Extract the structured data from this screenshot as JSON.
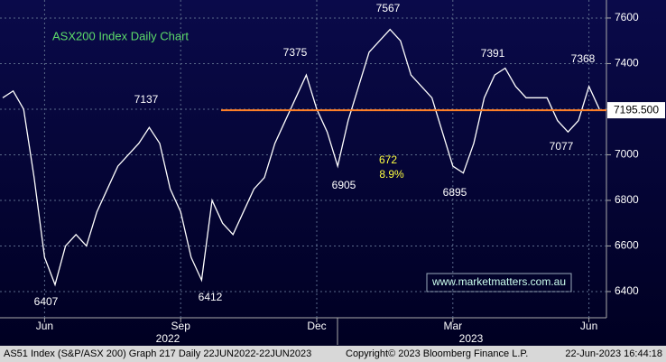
{
  "chart_data": {
    "type": "line",
    "title": "ASX200 Index Daily Chart",
    "categories": [
      null,
      null,
      null,
      null,
      "Jun",
      null,
      null,
      null,
      null,
      null,
      null,
      null,
      null,
      null,
      null,
      null,
      null,
      "Sep",
      null,
      null,
      null,
      null,
      null,
      null,
      null,
      null,
      null,
      null,
      null,
      null,
      "Dec",
      null,
      null,
      null,
      null,
      null,
      null,
      null,
      null,
      null,
      null,
      null,
      null,
      "Mar",
      null,
      null,
      null,
      null,
      null,
      null,
      null,
      null,
      null,
      null,
      null,
      null,
      "Jun",
      null
    ],
    "series": [
      {
        "name": "AS51 Index",
        "color": "#ffffff",
        "values": [
          7250,
          7280,
          7200,
          6900,
          6550,
          6430,
          6600,
          6650,
          6600,
          6750,
          6850,
          6950,
          7000,
          7050,
          7120,
          7050,
          6850,
          6750,
          6550,
          6450,
          6800,
          6700,
          6650,
          6750,
          6850,
          6900,
          7050,
          7150,
          7250,
          7350,
          7200,
          7100,
          6950,
          7150,
          7300,
          7450,
          7500,
          7550,
          7500,
          7350,
          7300,
          7250,
          7100,
          6950,
          6920,
          7050,
          7250,
          7350,
          7380,
          7300,
          7250,
          7250,
          7250,
          7150,
          7100,
          7150,
          7300,
          7200
        ]
      }
    ],
    "ylim": [
      6285,
      7679
    ],
    "yticks": [
      6400,
      6600,
      6800,
      7000,
      7200,
      7400,
      7600
    ],
    "grid": true,
    "reference_line": {
      "value": 7195.5,
      "label": "7195.500",
      "color": "#ff7f27"
    },
    "annotations": [
      "7567",
      "7375",
      "7137",
      "6905",
      "6895",
      "7391",
      "7368",
      "7077",
      "6407",
      "6412",
      "672",
      "8.9%"
    ],
    "years": [
      "2022",
      "2023"
    ],
    "watermark": "www.marketmatters.com.au",
    "footer": [
      "AS51 Index (S&P/ASX 200) Graph 217  Daily 22JUN2022-22JUN2023",
      "Copyright© 2023 Bloomberg Finance L.P.",
      "22-Jun-2023 16:44:18"
    ]
  }
}
